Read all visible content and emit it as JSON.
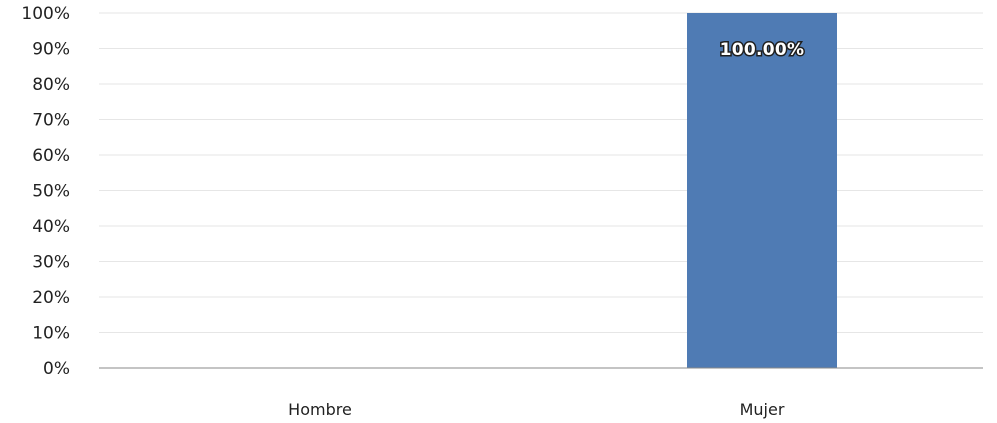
{
  "chart_data": {
    "type": "bar",
    "categories": [
      "Hombre",
      "Mujer"
    ],
    "series": [
      {
        "values": [
          0,
          100
        ]
      }
    ],
    "data_labels": [
      "",
      "100.00%"
    ],
    "y_ticks": [
      "0%",
      "10%",
      "20%",
      "30%",
      "40%",
      "50%",
      "60%",
      "70%",
      "80%",
      "90%",
      "100%"
    ],
    "ylim": [
      0,
      100
    ],
    "title": "",
    "xlabel": "",
    "ylabel": "",
    "grid": true,
    "legend": "none",
    "colors": {
      "bar": "#4f7bb4",
      "grid": "#e6e6e6",
      "axis": "#888888"
    }
  }
}
